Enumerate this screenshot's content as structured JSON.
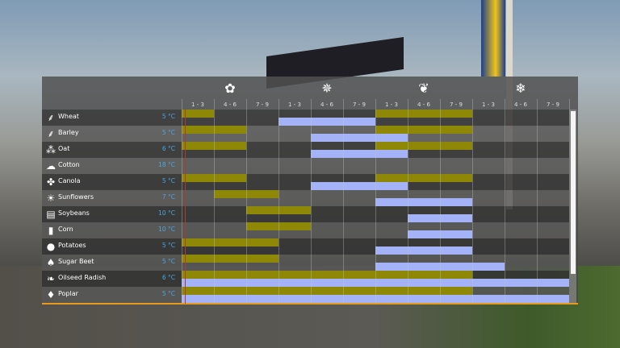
{
  "calendar": {
    "seasons": [
      {
        "name": "spring",
        "icon": "flower-icon",
        "glyph": "✿"
      },
      {
        "name": "summer",
        "icon": "sun-icon",
        "glyph": "✵"
      },
      {
        "name": "autumn",
        "icon": "maple-leaf-icon",
        "glyph": "❦"
      },
      {
        "name": "winter",
        "icon": "snowflake-icon",
        "glyph": "❄"
      }
    ],
    "periods": [
      "1 - 3",
      "4 - 6",
      "7 - 9"
    ],
    "colors": {
      "plant": "#8f8806",
      "harvest": "#a4b2f8",
      "current_time": "#b03a2e",
      "temperature": "#4aa6e0",
      "accent": "#e89a1c"
    },
    "crops": [
      {
        "name": "Wheat",
        "temp": "5 °C",
        "icon": "wheat-icon",
        "glyph": "⸙",
        "plant": [
          0,
          6,
          7,
          8
        ],
        "harvest": [
          3,
          4,
          5
        ]
      },
      {
        "name": "Barley",
        "temp": "5 °C",
        "icon": "barley-icon",
        "glyph": "⸙",
        "plant": [
          0,
          1,
          6,
          7,
          8
        ],
        "harvest": [
          4,
          5,
          6
        ]
      },
      {
        "name": "Oat",
        "temp": "6 °C",
        "icon": "oat-icon",
        "glyph": "⁂",
        "plant": [
          0,
          1,
          6,
          7,
          8
        ],
        "harvest": [
          4,
          5,
          6
        ]
      },
      {
        "name": "Cotton",
        "temp": "18 °C",
        "icon": "cotton-icon",
        "glyph": "☁",
        "plant": [],
        "harvest": []
      },
      {
        "name": "Canola",
        "temp": "5 °C",
        "icon": "canola-icon",
        "glyph": "✤",
        "plant": [
          0,
          1,
          6,
          7,
          8
        ],
        "harvest": [
          4,
          5,
          6
        ]
      },
      {
        "name": "Sunflowers",
        "temp": "7 °C",
        "icon": "sunflower-icon",
        "glyph": "☀",
        "plant": [
          1,
          2
        ],
        "harvest": [
          6,
          7,
          8
        ]
      },
      {
        "name": "Soybeans",
        "temp": "10 °C",
        "icon": "soybean-icon",
        "glyph": "▤",
        "plant": [
          2,
          3
        ],
        "harvest": [
          7,
          8
        ]
      },
      {
        "name": "Corn",
        "temp": "10 °C",
        "icon": "corn-icon",
        "glyph": "▮",
        "plant": [
          2,
          3
        ],
        "harvest": [
          7,
          8
        ]
      },
      {
        "name": "Potatoes",
        "temp": "5 °C",
        "icon": "potato-icon",
        "glyph": "●",
        "plant": [
          0,
          1,
          2
        ],
        "harvest": [
          6,
          7,
          8
        ]
      },
      {
        "name": "Sugar Beet",
        "temp": "5 °C",
        "icon": "sugar-beet-icon",
        "glyph": "♠",
        "plant": [
          0,
          1,
          2
        ],
        "harvest": [
          6,
          7,
          8,
          9
        ]
      },
      {
        "name": "Oilseed Radish",
        "temp": "6 °C",
        "icon": "oilseed-radish-icon",
        "glyph": "❧",
        "plant": [
          0,
          1,
          2,
          3,
          4,
          5,
          6,
          7,
          8
        ],
        "harvest": [
          0,
          1,
          2,
          3,
          4,
          5,
          6,
          7,
          8,
          9,
          10,
          11
        ]
      },
      {
        "name": "Poplar",
        "temp": "5 °C",
        "icon": "poplar-icon",
        "glyph": "♦",
        "plant": [
          0,
          1,
          2,
          3,
          4,
          5,
          6,
          7,
          8
        ],
        "harvest": [
          0,
          1,
          2,
          3,
          4,
          5,
          6,
          7,
          8,
          9,
          10,
          11
        ]
      }
    ]
  }
}
